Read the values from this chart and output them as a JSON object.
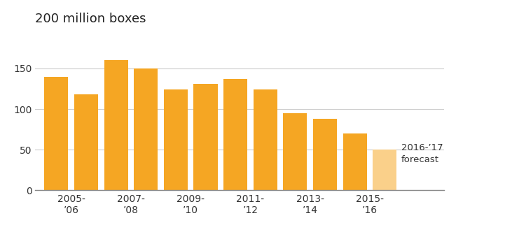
{
  "values": [
    140,
    118,
    160,
    150,
    124,
    131,
    137,
    124,
    95,
    88,
    70,
    50
  ],
  "bar_color_main": "#F5A623",
  "bar_color_forecast": "#FAD08A",
  "title": "200 million boxes",
  "ylim": [
    0,
    200
  ],
  "yticks": [
    0,
    50,
    100,
    150
  ],
  "x_group_labels": [
    "2005-\n’06",
    "2007-\n’08",
    "2009-\n’10",
    "2011-\n’12",
    "2013-\n’14",
    "2015-\n’16"
  ],
  "group_centers": [
    0.5,
    2.5,
    4.5,
    6.5,
    8.5,
    10.5
  ],
  "background_color": "#ffffff",
  "grid_color": "#cccccc",
  "title_fontsize": 13,
  "tick_fontsize": 10,
  "annotation_text": "2016-’17\nforecast",
  "annotation_fontsize": 9.5,
  "annotation_color": "#333333"
}
